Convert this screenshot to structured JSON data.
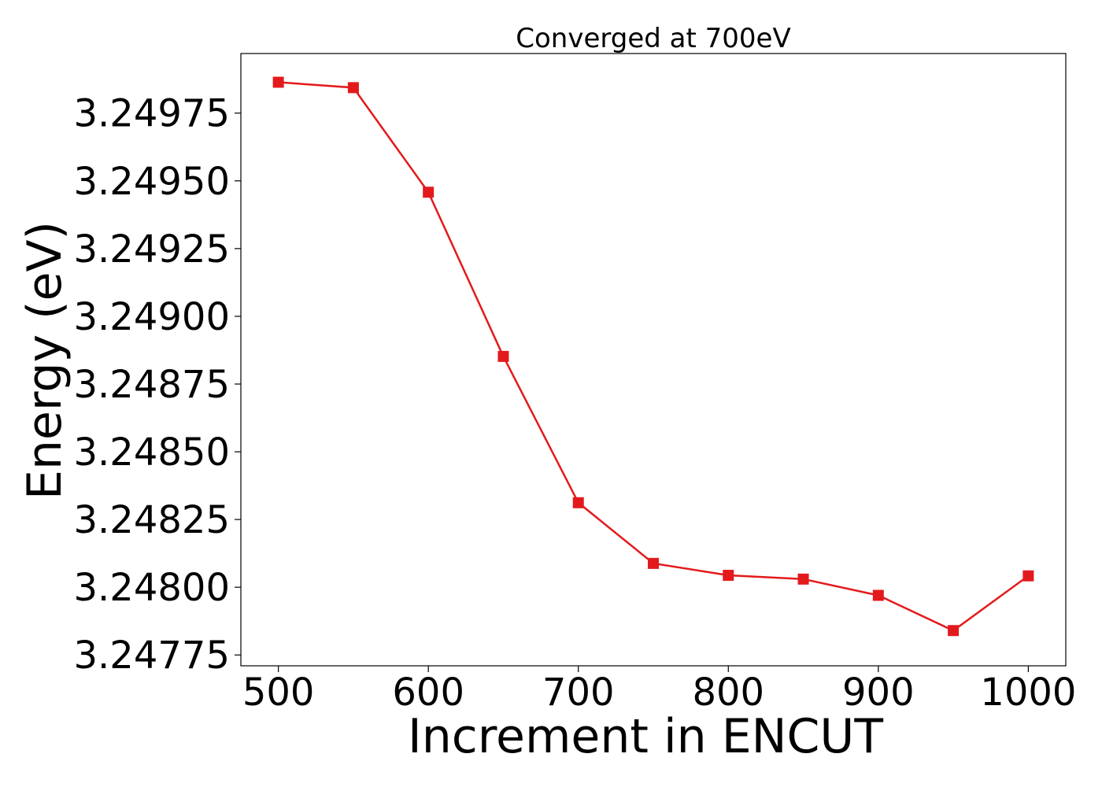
{
  "chart_data": {
    "type": "line",
    "title": "Converged at 700eV",
    "xlabel": "Increment in ENCUT",
    "ylabel": "Energy (eV)",
    "x": [
      500,
      550,
      600,
      650,
      700,
      750,
      800,
      850,
      900,
      950,
      1000
    ],
    "series": [
      {
        "values": [
          3.249864,
          3.249844,
          3.249458,
          3.248852,
          3.248312,
          3.248088,
          3.248044,
          3.24803,
          3.24797,
          3.24784,
          3.248042
        ],
        "color": "#e31a1c",
        "marker": "square"
      }
    ],
    "xlim": [
      475,
      1025
    ],
    "ylim": [
      3.24771,
      3.24997
    ],
    "xticks": [
      500,
      600,
      700,
      800,
      900,
      1000
    ],
    "xtick_labels": [
      "500",
      "600",
      "700",
      "800",
      "900",
      "1000"
    ],
    "yticks": [
      3.24775,
      3.248,
      3.24825,
      3.2485,
      3.24875,
      3.249,
      3.24925,
      3.2495,
      3.24975
    ],
    "ytick_labels": [
      "3.24775",
      "3.24800",
      "3.24825",
      "3.24850",
      "3.24875",
      "3.24900",
      "3.24925",
      "3.24950",
      "3.24975"
    ],
    "grid": false,
    "legend": "none"
  }
}
